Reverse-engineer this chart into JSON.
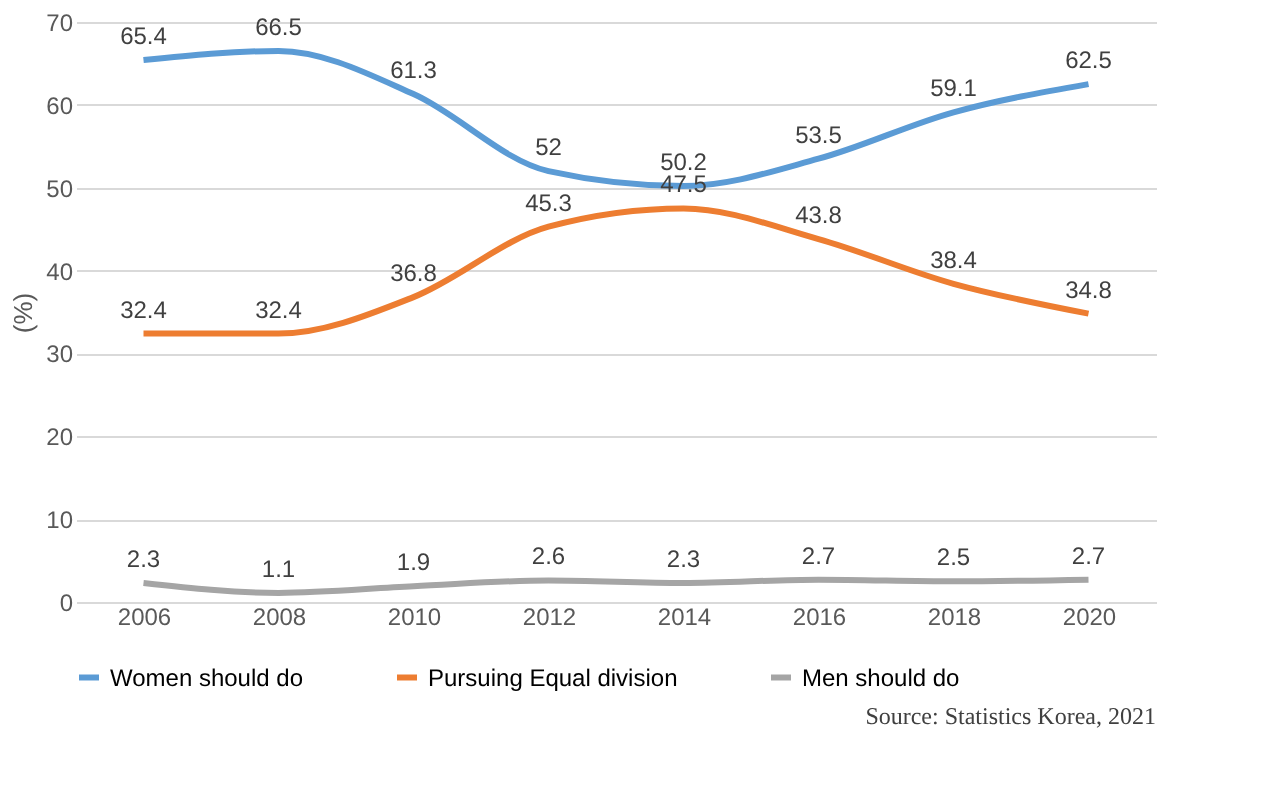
{
  "chart_data": {
    "type": "line",
    "ylabel": "(%)",
    "categories": [
      "2006",
      "2008",
      "2010",
      "2012",
      "2014",
      "2016",
      "2018",
      "2020"
    ],
    "series": [
      {
        "name": "Women should do",
        "color": "#5b9bd5",
        "values": [
          65.4,
          66.5,
          61.3,
          52,
          50.2,
          53.5,
          59.1,
          62.5
        ]
      },
      {
        "name": "Pursuing Equal division",
        "color": "#ed7d31",
        "values": [
          32.4,
          32.4,
          36.8,
          45.3,
          47.5,
          43.8,
          38.4,
          34.8
        ]
      },
      {
        "name": "Men should do",
        "color": "#a5a5a5",
        "values": [
          2.3,
          1.1,
          1.9,
          2.6,
          2.3,
          2.7,
          2.5,
          2.7
        ]
      }
    ],
    "ylim": [
      0,
      70
    ],
    "yticks": [
      0,
      10,
      20,
      30,
      40,
      50,
      60,
      70
    ],
    "grid": "y",
    "legend": "bottom",
    "data_labels": true,
    "marker": "none",
    "line_style": "solid",
    "annotations": [
      "Source: Statistics Korea, 2021"
    ]
  }
}
